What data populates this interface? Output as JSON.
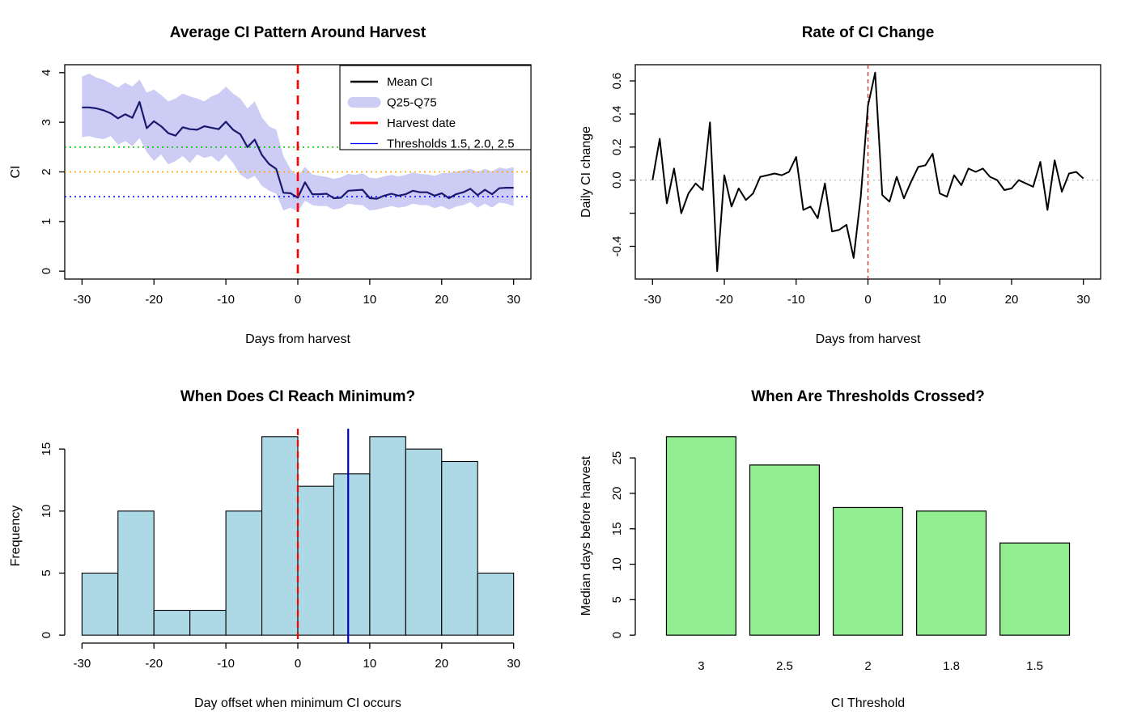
{
  "figure": {
    "background": "#FFFFFF",
    "layout": "2x2-r-plots"
  },
  "colors": {
    "mean_line": "#191970",
    "ribbon": "#CCCCF5",
    "harvest_red": "#FF0000",
    "rate_red": "#DD2222",
    "threshold_green": "#00C000",
    "threshold_orange": "#FFA500",
    "threshold_blue": "#0000FF",
    "zero_gray": "#BBBBBB",
    "rate_line": "#000000",
    "hist_fill": "#ADD8E6",
    "median_blue": "#0000CD",
    "bar_fill": "#90EE90",
    "axis": "#000000"
  },
  "chart_data": [
    {
      "type": "ribbon-line",
      "title": "Average CI Pattern Around Harvest",
      "xlabel": "Days from harvest",
      "ylabel": "CI",
      "xlim": [
        -30,
        30
      ],
      "ylim": [
        0,
        4
      ],
      "xticks": [
        -30,
        -20,
        -10,
        0,
        10,
        20,
        30
      ],
      "yticks": [
        0,
        1,
        2,
        3,
        4
      ],
      "x_start": -30,
      "x_step": 1,
      "mean": [
        3.3,
        3.3,
        3.28,
        3.24,
        3.18,
        3.08,
        3.16,
        3.09,
        3.41,
        2.88,
        3.02,
        2.92,
        2.78,
        2.73,
        2.9,
        2.86,
        2.85,
        2.92,
        2.89,
        2.86,
        3.01,
        2.85,
        2.76,
        2.5,
        2.65,
        2.34,
        2.16,
        2.06,
        1.58,
        1.57,
        1.48,
        1.79,
        1.55,
        1.55,
        1.56,
        1.47,
        1.48,
        1.62,
        1.63,
        1.64,
        1.47,
        1.46,
        1.52,
        1.56,
        1.52,
        1.55,
        1.62,
        1.59,
        1.59,
        1.52,
        1.57,
        1.47,
        1.55,
        1.59,
        1.66,
        1.53,
        1.64,
        1.55,
        1.67,
        1.68,
        1.68
      ],
      "q25": [
        2.7,
        2.72,
        2.68,
        2.66,
        2.72,
        2.55,
        2.62,
        2.52,
        2.68,
        2.4,
        2.22,
        2.35,
        2.15,
        2.22,
        2.32,
        2.18,
        2.35,
        2.28,
        2.32,
        2.2,
        2.35,
        2.18,
        1.95,
        1.85,
        1.92,
        1.72,
        1.62,
        1.56,
        1.22,
        1.28,
        1.2,
        1.42,
        1.33,
        1.31,
        1.31,
        1.24,
        1.27,
        1.36,
        1.34,
        1.33,
        1.22,
        1.24,
        1.28,
        1.31,
        1.28,
        1.3,
        1.36,
        1.33,
        1.33,
        1.27,
        1.31,
        1.24,
        1.3,
        1.33,
        1.39,
        1.28,
        1.36,
        1.28,
        1.38,
        1.36,
        1.31
      ],
      "q75": [
        3.92,
        3.98,
        3.9,
        3.86,
        3.78,
        3.7,
        3.8,
        3.72,
        3.86,
        3.6,
        3.66,
        3.55,
        3.42,
        3.48,
        3.58,
        3.52,
        3.48,
        3.42,
        3.52,
        3.58,
        3.72,
        3.58,
        3.48,
        3.28,
        3.42,
        3.1,
        2.92,
        2.85,
        2.32,
        2.05,
        1.92,
        2.1,
        1.95,
        1.92,
        1.9,
        1.86,
        1.89,
        1.96,
        1.94,
        1.97,
        1.88,
        1.87,
        1.91,
        1.94,
        1.91,
        1.94,
        1.99,
        1.96,
        1.95,
        1.92,
        1.97,
        1.98,
        2.01,
        2.03,
        2.06,
        2.0,
        2.06,
        2.01,
        2.09,
        2.06,
        2.1
      ],
      "thresholds": [
        {
          "value": 2.5,
          "color": "#00C000"
        },
        {
          "value": 2.0,
          "color": "#FFA500"
        },
        {
          "value": 1.5,
          "color": "#0000FF"
        }
      ],
      "harvest_x": 0,
      "legend": [
        {
          "label": "Mean CI",
          "type": "line",
          "color": "#000000",
          "lwd": 2.6
        },
        {
          "label": "Q25-Q75",
          "type": "band",
          "color": "#CCCCF5",
          "lwd": 13
        },
        {
          "label": "Harvest date",
          "type": "line",
          "color": "#FF0000",
          "lwd": 3
        },
        {
          "label": "Thresholds 1.5, 2.0, 2.5",
          "type": "line",
          "color": "#0000FF",
          "lwd": 1.2
        }
      ]
    },
    {
      "type": "line",
      "title": "Rate of CI Change",
      "xlabel": "Days from harvest",
      "ylabel": "Daily CI change",
      "xlim": [
        -30,
        30
      ],
      "ylim": [
        -0.55,
        0.65
      ],
      "xticks": [
        -30,
        -20,
        -10,
        0,
        10,
        20,
        30
      ],
      "yticks": [
        {
          "v": 0.6,
          "label": "0.6"
        },
        {
          "v": 0.4,
          "label": "0.4"
        },
        {
          "v": 0.2,
          "label": "0.2"
        },
        {
          "v": 0.0,
          "label": "0.0"
        },
        {
          "v": -0.2,
          "label": ""
        },
        {
          "v": -0.4,
          "label": "-0.4"
        }
      ],
      "x_start": -30,
      "x_step": 1,
      "y": [
        0.0,
        0.25,
        -0.14,
        0.07,
        -0.2,
        -0.08,
        -0.02,
        -0.06,
        0.35,
        -0.55,
        0.03,
        -0.16,
        -0.05,
        -0.12,
        -0.08,
        0.02,
        0.03,
        0.04,
        0.03,
        0.05,
        0.14,
        -0.18,
        -0.16,
        -0.23,
        -0.02,
        -0.31,
        -0.3,
        -0.27,
        -0.47,
        -0.1,
        0.45,
        0.65,
        -0.09,
        -0.13,
        0.02,
        -0.11,
        -0.01,
        0.08,
        0.09,
        0.16,
        -0.08,
        -0.1,
        0.03,
        -0.03,
        0.07,
        0.05,
        0.07,
        0.02,
        0.0,
        -0.06,
        -0.05,
        0.0,
        -0.02,
        -0.04,
        0.11,
        -0.18,
        0.12,
        -0.07,
        0.04,
        0.05,
        0.01
      ],
      "hline_y": 0,
      "vline_x": 0
    },
    {
      "type": "histogram",
      "title": "When Does CI Reach Minimum?",
      "xlabel": "Day offset when minimum CI occurs",
      "ylabel": "Frequency",
      "xlim": [
        -30,
        30
      ],
      "ylim": [
        0,
        16
      ],
      "xticks": [
        -30,
        -20,
        -10,
        0,
        10,
        20,
        30
      ],
      "yticks": [
        0,
        5,
        10,
        15
      ],
      "bin_start": -30,
      "bin_width": 5,
      "counts": [
        5,
        10,
        2,
        2,
        10,
        16,
        12,
        13,
        16,
        15,
        14,
        5
      ],
      "vlines": [
        {
          "x": 0,
          "color": "#FF0000",
          "style": "dashed",
          "name": "harvest-day-line"
        },
        {
          "x": 7,
          "color": "#0000CD",
          "style": "solid",
          "name": "median-min-day-line"
        }
      ]
    },
    {
      "type": "bar",
      "title": "When Are Thresholds Crossed?",
      "xlabel": "CI Threshold",
      "ylabel": "Median days before harvest",
      "categories": [
        "3",
        "2.5",
        "2",
        "1.8",
        "1.5"
      ],
      "values": [
        28,
        24,
        18,
        17.5,
        13
      ],
      "ylim": [
        0,
        28
      ],
      "yticks": [
        0,
        5,
        10,
        15,
        20,
        25
      ]
    }
  ]
}
